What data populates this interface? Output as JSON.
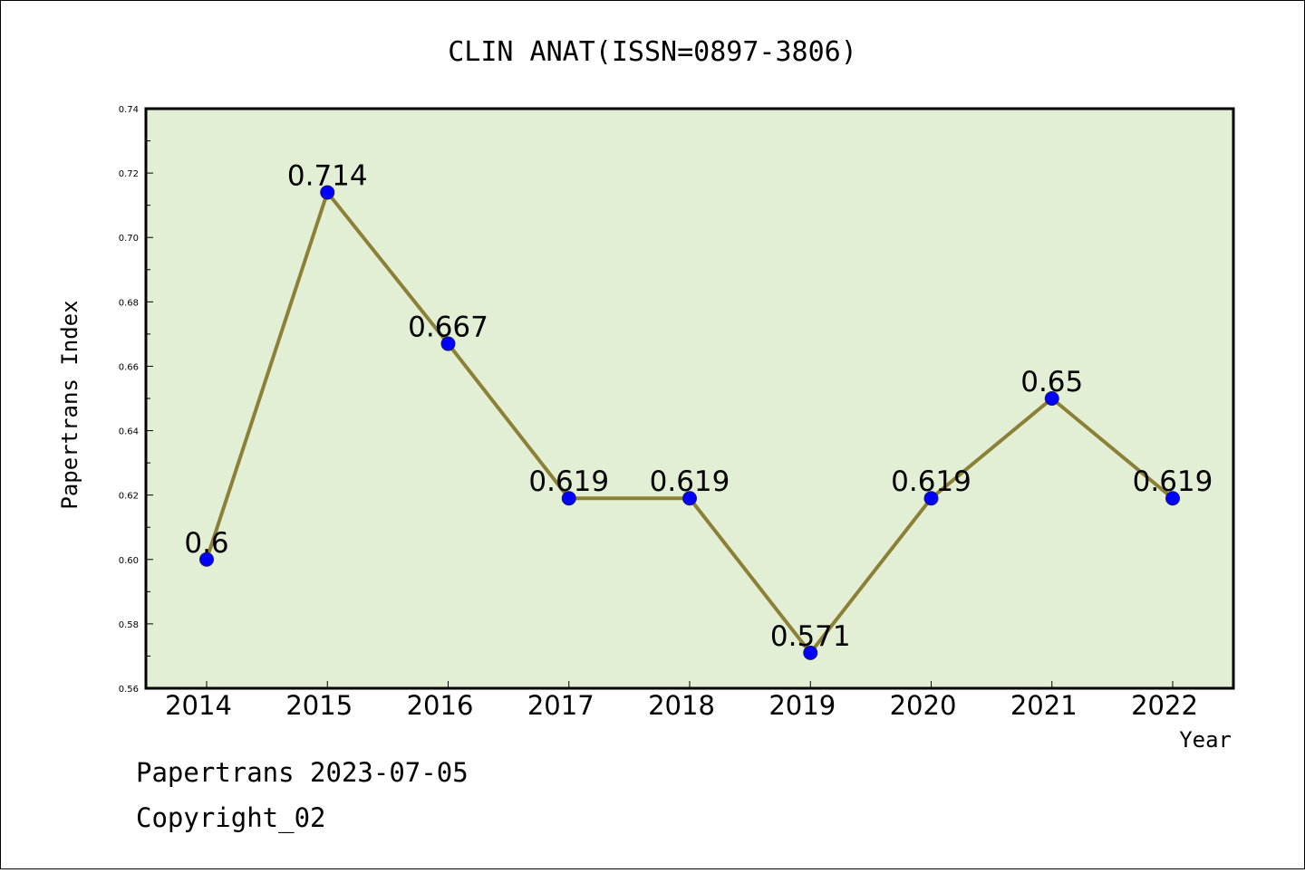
{
  "chart_data": {
    "type": "line",
    "title": "CLIN ANAT(ISSN=0897-3806)",
    "xlabel": "Year",
    "ylabel": "Papertrans Index",
    "categories": [
      "2014",
      "2015",
      "2016",
      "2017",
      "2018",
      "2019",
      "2020",
      "2021",
      "2022"
    ],
    "series": [
      {
        "values": [
          0.6,
          0.714,
          0.667,
          0.619,
          0.619,
          0.571,
          0.619,
          0.65,
          0.619
        ],
        "labels": [
          "0.6",
          "0.714",
          "0.667",
          "0.619",
          "0.619",
          "0.571",
          "0.619",
          "0.65",
          "0.619"
        ]
      }
    ],
    "ylim": [
      0.56,
      0.74
    ],
    "yticks": [
      "0.56",
      "0.58",
      "0.60",
      "0.62",
      "0.64",
      "0.66",
      "0.68",
      "0.70",
      "0.72",
      "0.74"
    ],
    "grid": false,
    "legend": "none",
    "line_color": "#8b8036",
    "marker_color": "#0000ff",
    "plot_background": "#e2efd5"
  },
  "footer": {
    "date_line": "Papertrans 2023-07-05",
    "copyright": "Copyright_02"
  }
}
